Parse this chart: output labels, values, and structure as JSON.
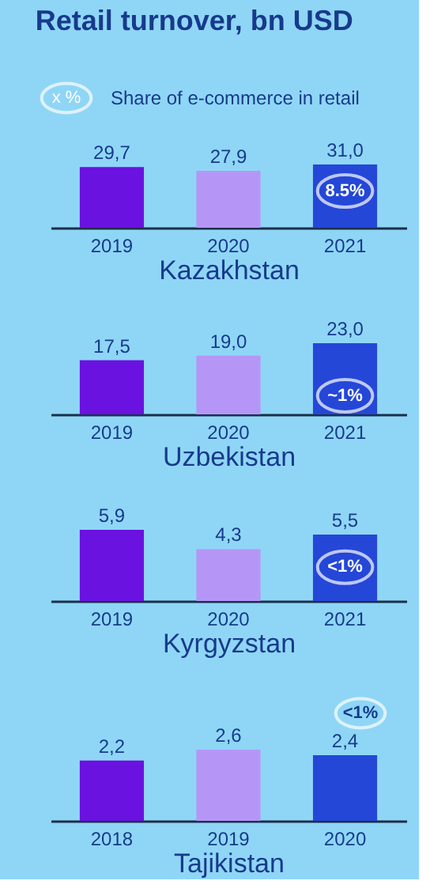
{
  "chart_data": [
    {
      "type": "bar",
      "title": "Retail turnover, bn USD",
      "xlabel": "Kazakhstan",
      "categories": [
        "2019",
        "2020",
        "2021"
      ],
      "values": [
        29.7,
        27.9,
        31.0
      ],
      "value_labels": [
        "29,7",
        "27,9",
        "31,0"
      ],
      "colors": [
        "#6a12e0",
        "#b596f7",
        "#2447d8"
      ],
      "annotations": [
        "x %",
        "Share of e-commerce in retail",
        {
          "text": "8.5%",
          "x": "2021",
          "y": 18
        }
      ]
    },
    {
      "type": "bar",
      "xlabel": "Uzbekistan",
      "categories": [
        "2019",
        "2020",
        "2021"
      ],
      "values": [
        17.5,
        19.0,
        23.0
      ],
      "value_labels": [
        "17,5",
        "19,0",
        "23,0"
      ],
      "colors": [
        "#6a12e0",
        "#b596f7",
        "#2447d8"
      ],
      "annotations": [
        {
          "text": "~1%",
          "x": "2021",
          "y": 6
        }
      ]
    },
    {
      "type": "bar",
      "xlabel": "Kyrgyzstan",
      "categories": [
        "2019",
        "2020",
        "2021"
      ],
      "values": [
        5.9,
        4.3,
        5.5
      ],
      "value_labels": [
        "5,9",
        "4,3",
        "5,5"
      ],
      "colors": [
        "#6a12e0",
        "#b596f7",
        "#2447d8"
      ],
      "annotations": [
        {
          "text": "<1%",
          "x": "2021",
          "y": 2.8
        }
      ]
    },
    {
      "type": "bar",
      "xlabel": "Tajikistan",
      "categories": [
        "2018",
        "2019",
        "2020"
      ],
      "values": [
        2.2,
        2.6,
        2.4
      ],
      "value_labels": [
        "2,2",
        "2,6",
        "2,4"
      ],
      "colors": [
        "#6a12e0",
        "#b596f7",
        "#2447d8"
      ],
      "annotations": [
        "<1%"
      ]
    }
  ]
}
